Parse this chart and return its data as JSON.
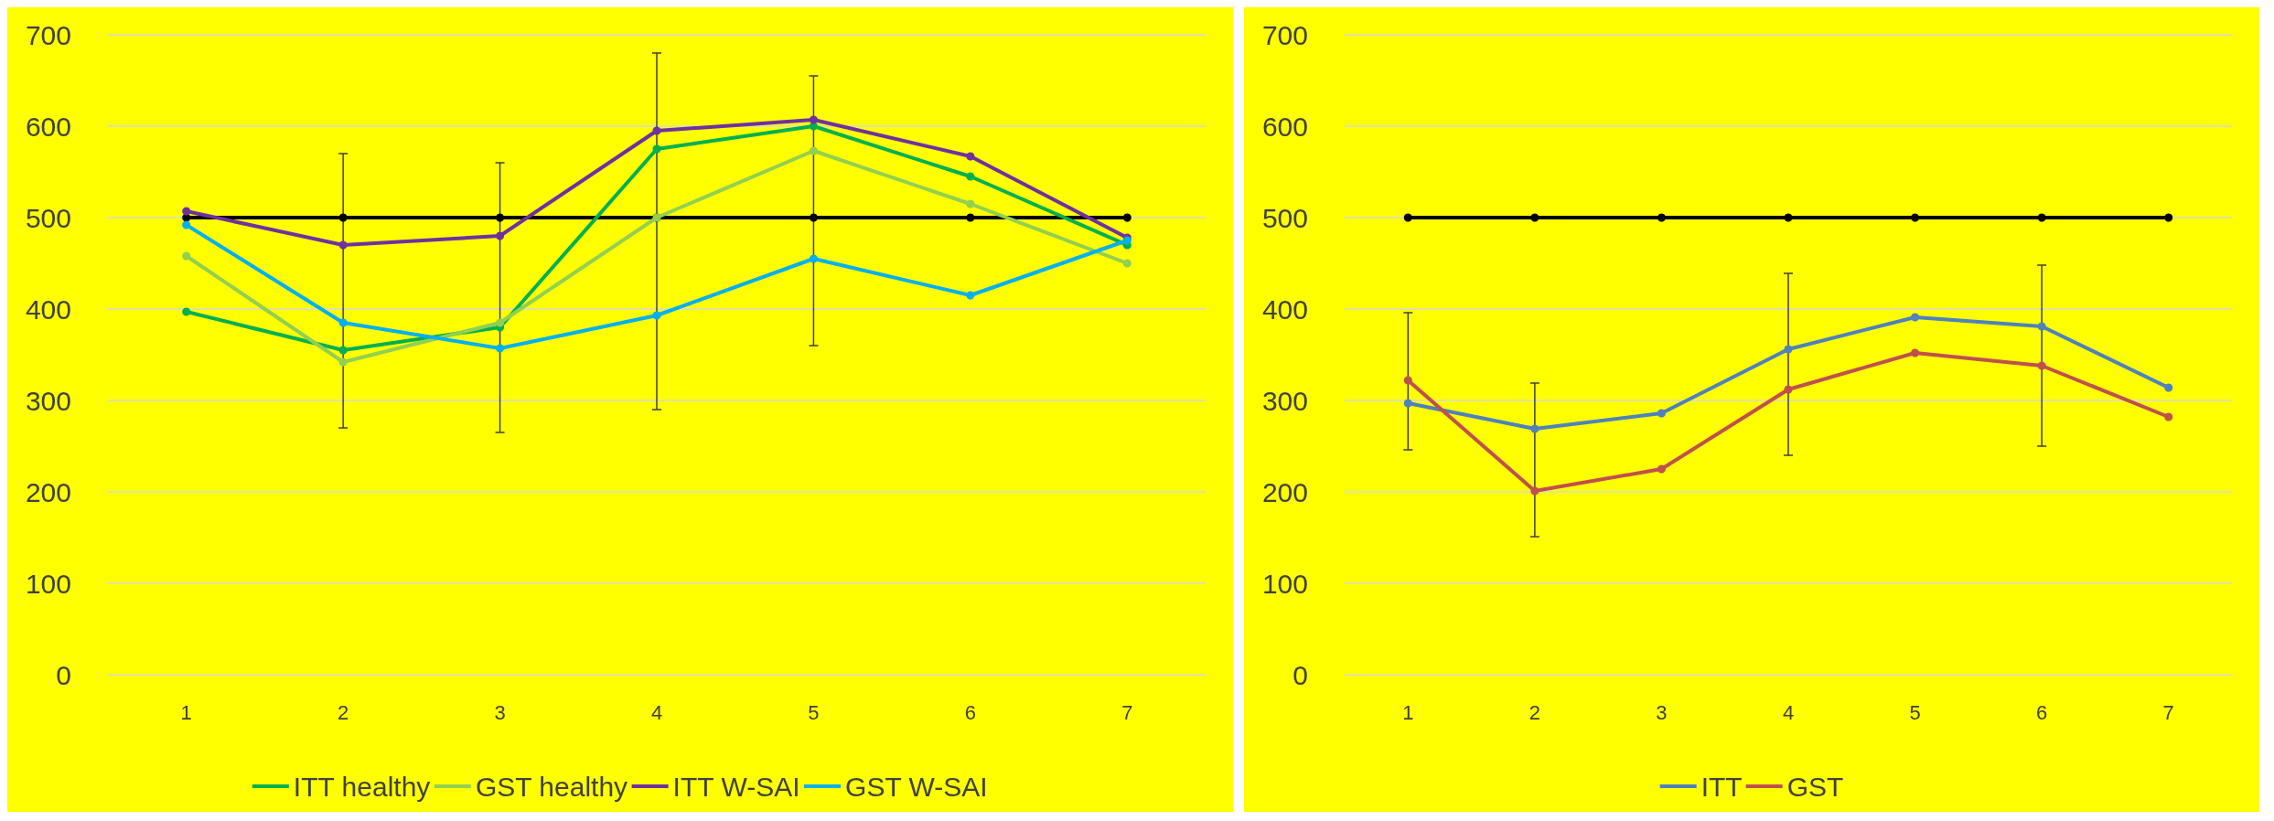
{
  "chart_data": [
    {
      "type": "line",
      "categories": [
        "1",
        "2",
        "3",
        "4",
        "5",
        "6",
        "7"
      ],
      "ylim": [
        0,
        700
      ],
      "yticks": [
        0,
        100,
        200,
        300,
        400,
        500,
        600,
        700
      ],
      "grid": "y",
      "legend": "bottom",
      "marker": "circle",
      "series": [
        {
          "name": "ITT healthy",
          "color": "#00b050",
          "values": [
            397,
            355,
            380,
            575,
            600,
            545,
            470
          ]
        },
        {
          "name": "GST healthy",
          "color": "#92d050",
          "values": [
            458,
            342,
            385,
            500,
            573,
            515,
            450
          ]
        },
        {
          "name": "ITT W-SAI",
          "color": "#7030a0",
          "values": [
            507,
            470,
            480,
            595,
            607,
            567,
            478
          ]
        },
        {
          "name": "GST W-SAI",
          "color": "#00b0f0",
          "values": [
            492,
            385,
            357,
            393,
            455,
            415,
            475
          ]
        },
        {
          "color": "#000000",
          "values": [
            500,
            500,
            500,
            500,
            500,
            500,
            500
          ],
          "errors": [
            null,
            [
              270,
              570
            ],
            [
              265,
              560
            ],
            [
              290,
              680
            ],
            [
              360,
              655
            ],
            null,
            null
          ]
        }
      ]
    },
    {
      "type": "line",
      "categories": [
        "1",
        "2",
        "3",
        "4",
        "5",
        "6",
        "7"
      ],
      "ylim": [
        0,
        700
      ],
      "yticks": [
        0,
        100,
        200,
        300,
        400,
        500,
        600,
        700
      ],
      "grid": "y",
      "legend": "bottom",
      "marker": "circle",
      "series": [
        {
          "name": "ITT",
          "color": "#4f81bd",
          "values": [
            297,
            269,
            286,
            356,
            391,
            381,
            314
          ]
        },
        {
          "name": "GST",
          "color": "#c0504d",
          "values": [
            322,
            201,
            225,
            312,
            352,
            338,
            282
          ]
        },
        {
          "color": "#000000",
          "values": [
            500,
            500,
            500,
            500,
            500,
            500,
            500
          ],
          "errors": [
            [
              246,
              396
            ],
            [
              151,
              319
            ],
            null,
            [
              240,
              439
            ],
            null,
            [
              250,
              448
            ],
            null
          ]
        }
      ]
    }
  ]
}
